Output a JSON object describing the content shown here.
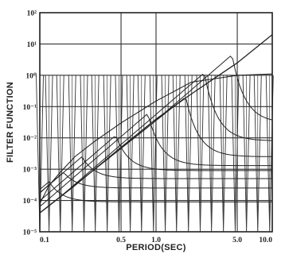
{
  "chart_data": {
    "type": "line",
    "xlabel": "PERIOD(SEC)",
    "ylabel": "FILTER FUNCTION",
    "xscale": "log",
    "yscale": "log",
    "xlim": [
      0.1,
      10.0
    ],
    "ylim": [
      1e-05,
      100
    ],
    "x_tick_labels": [
      "0.1",
      "0.5",
      "1.0",
      "5.0",
      "10.0"
    ],
    "x_tick_values": [
      0.1,
      0.5,
      1.0,
      5.0,
      10.0
    ],
    "y_tick_labels": [
      "10⁻⁵",
      "10⁻⁴",
      "10⁻³",
      "10⁻²",
      "10⁻¹",
      "10⁰",
      "10¹",
      "10²"
    ],
    "y_tick_values": [
      1e-05,
      0.0001,
      0.001,
      0.01,
      0.1,
      1,
      10,
      100
    ],
    "grid": true,
    "filter_center_periods": [
      0.1,
      0.12,
      0.15,
      0.19,
      0.24,
      0.3,
      0.38,
      0.48,
      0.6,
      0.75,
      0.95,
      1.2,
      1.5,
      1.9,
      2.4,
      3.0,
      3.8,
      4.8,
      6.0,
      7.5,
      9.5
    ],
    "curves": {
      "rising_reference": [
        {
          "x": 0.1,
          "y": 4e-05
        },
        {
          "x": 0.2,
          "y": 0.0003
        },
        {
          "x": 0.5,
          "y": 0.005
        },
        {
          "x": 1.0,
          "y": 0.04
        },
        {
          "x": 2.0,
          "y": 0.25
        },
        {
          "x": 5.0,
          "y": 2.5
        },
        {
          "x": 10.0,
          "y": 20
        }
      ],
      "smoothed_response": [
        {
          "x": 0.1,
          "y": 8e-05
        },
        {
          "x": 0.12,
          "y": 0.0003
        },
        {
          "x": 0.15,
          "y": 0.0008
        },
        {
          "x": 0.2,
          "y": 0.0025
        },
        {
          "x": 0.3,
          "y": 0.008
        },
        {
          "x": 0.5,
          "y": 0.03
        },
        {
          "x": 1.0,
          "y": 0.15
        },
        {
          "x": 2.0,
          "y": 0.6
        },
        {
          "x": 5.0,
          "y": 1.0
        },
        {
          "x": 10.0,
          "y": 1.1
        }
      ]
    },
    "resonance_series": [
      {
        "peak_x": 0.12,
        "peak_y": 0.0004,
        "floor": 9e-05
      },
      {
        "peak_x": 0.16,
        "peak_y": 0.0008,
        "floor": 0.00025
      },
      {
        "peak_x": 0.23,
        "peak_y": 0.0025,
        "floor": 0.0005
      },
      {
        "peak_x": 0.45,
        "peak_y": 0.012,
        "floor": 0.0009
      },
      {
        "peak_x": 0.85,
        "peak_y": 0.06,
        "floor": 0.0013
      },
      {
        "peak_x": 1.8,
        "peak_y": 0.2,
        "floor": 0.0025
      },
      {
        "peak_x": 2.6,
        "peak_y": 1.2,
        "floor": 0.008
      },
      {
        "peak_x": 4.5,
        "peak_y": 4.5,
        "floor": 0.03
      }
    ]
  }
}
